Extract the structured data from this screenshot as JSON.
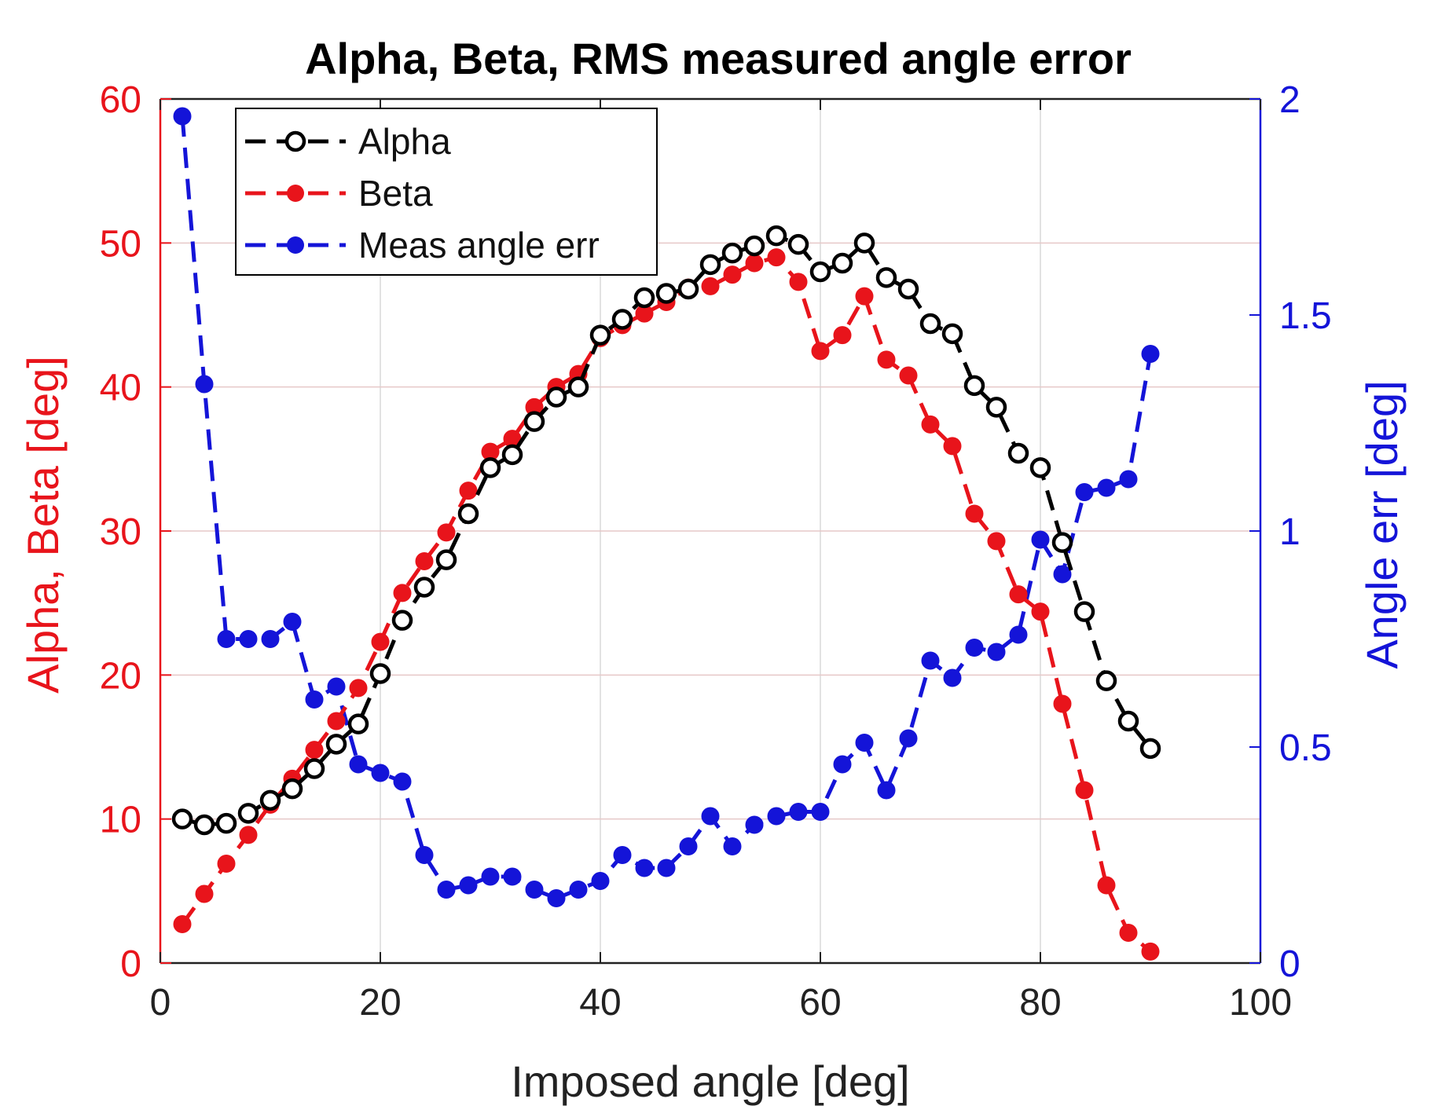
{
  "chart_data": {
    "type": "line",
    "title": "Alpha, Beta, RMS measured angle error",
    "xlabel": "Imposed angle [deg]",
    "ylabel_left": "Alpha, Beta [deg]",
    "ylabel_right": "Angle err [deg]",
    "xlim": [
      0,
      100
    ],
    "ylim_left": [
      0,
      60
    ],
    "ylim_right": [
      0,
      2
    ],
    "xticks": [
      "0",
      "20",
      "40",
      "60",
      "80",
      "100"
    ],
    "yticks_left": [
      "0",
      "10",
      "20",
      "30",
      "40",
      "50",
      "60"
    ],
    "yticks_right": [
      "0",
      "0.5",
      "1",
      "1.5",
      "2"
    ],
    "grid": true,
    "legend_position": "top-left",
    "colors": {
      "alpha": "#000000",
      "beta": "#e8141b",
      "err": "#1414d8",
      "grid": "#e6c8c8"
    },
    "x": [
      2,
      4,
      6,
      8,
      10,
      12,
      14,
      16,
      18,
      20,
      22,
      24,
      26,
      28,
      30,
      32,
      34,
      36,
      38,
      40,
      42,
      44,
      46,
      48,
      50,
      52,
      54,
      56,
      58,
      60,
      62,
      64,
      66,
      68,
      70,
      72,
      74,
      76,
      78,
      80,
      82,
      84,
      86,
      88,
      90
    ],
    "series": [
      {
        "name": "Alpha",
        "axis": "left",
        "marker": "open-circle",
        "values": [
          10.0,
          9.6,
          9.7,
          10.4,
          11.3,
          12.1,
          13.5,
          15.2,
          16.6,
          20.1,
          23.8,
          26.1,
          28.0,
          31.2,
          34.4,
          35.3,
          37.6,
          39.3,
          40.0,
          43.6,
          44.7,
          46.2,
          46.5,
          46.8,
          48.5,
          49.3,
          49.8,
          50.5,
          49.9,
          48.0,
          48.6,
          50.0,
          47.6,
          46.8,
          44.4,
          43.7,
          40.1,
          38.6,
          35.4,
          34.4,
          29.2,
          24.4,
          19.6,
          16.8,
          14.9
        ]
      },
      {
        "name": "Beta",
        "axis": "left",
        "marker": "filled-circle",
        "values": [
          2.7,
          4.8,
          6.9,
          8.9,
          11.0,
          12.8,
          14.8,
          16.8,
          19.1,
          22.3,
          25.7,
          27.9,
          29.9,
          32.8,
          35.5,
          36.4,
          38.6,
          40.0,
          40.9,
          43.4,
          44.3,
          45.1,
          45.9,
          46.9,
          47.0,
          47.8,
          48.6,
          49.0,
          47.3,
          42.5,
          43.6,
          46.3,
          41.9,
          40.8,
          37.4,
          35.9,
          31.2,
          29.3,
          25.6,
          24.4,
          18.0,
          12.0,
          5.4,
          2.1,
          0.8
        ]
      },
      {
        "name": "Meas angle err",
        "axis": "right",
        "marker": "filled-circle",
        "values": [
          1.96,
          1.34,
          0.75,
          0.75,
          0.75,
          0.79,
          0.61,
          0.64,
          0.46,
          0.44,
          0.42,
          0.25,
          0.17,
          0.18,
          0.2,
          0.2,
          0.17,
          0.15,
          0.17,
          0.19,
          0.25,
          0.22,
          0.22,
          0.27,
          0.34,
          0.27,
          0.32,
          0.34,
          0.35,
          0.35,
          0.46,
          0.51,
          0.4,
          0.52,
          0.7,
          0.66,
          0.73,
          0.72,
          0.76,
          0.98,
          0.9,
          1.09,
          1.1,
          1.12,
          1.41
        ]
      }
    ]
  }
}
